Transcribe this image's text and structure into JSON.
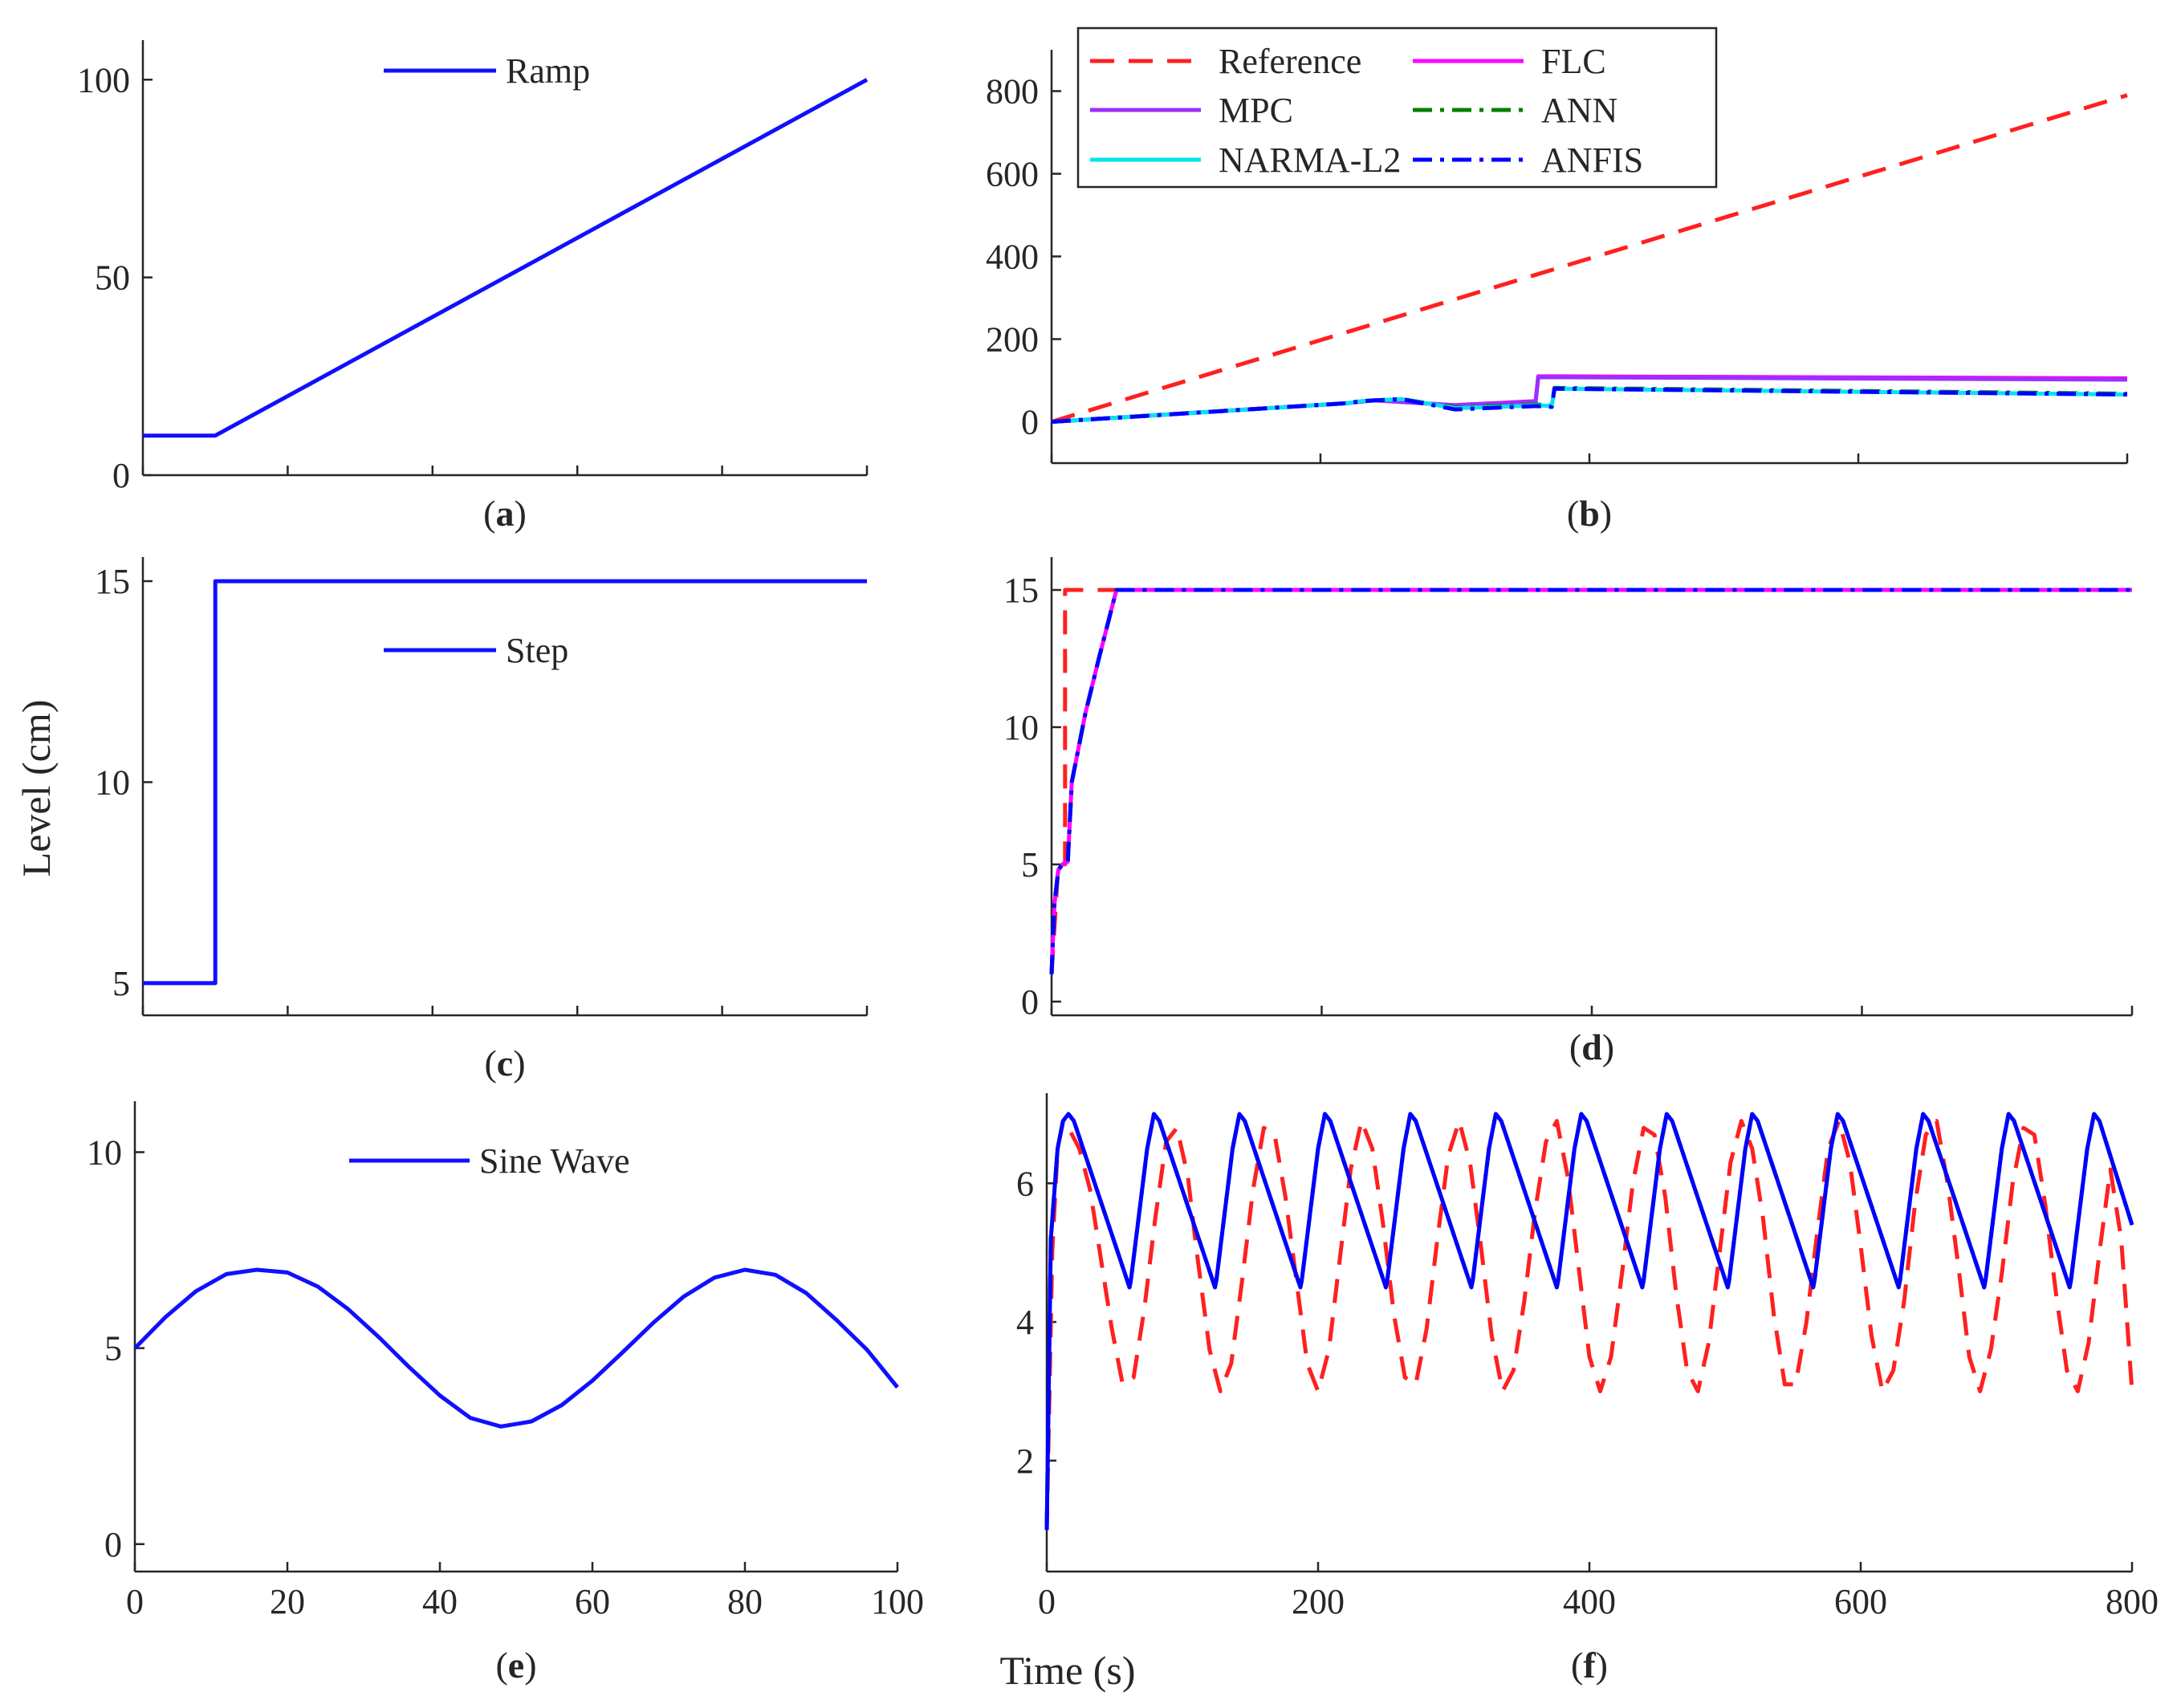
{
  "figure": {
    "ylabel": "Level (cm)",
    "xlabel": "Time (s)"
  },
  "colors": {
    "reference": "#ff2020",
    "flc": "#ff00ff",
    "mpc": "#9b30ff",
    "ann": "#008000",
    "narma": "#00e5ee",
    "anfis": "#0000ff",
    "input": "#1010ff",
    "axis": "#262626"
  },
  "chart_data": [
    {
      "id": "a",
      "panel_label": "(a)",
      "type": "line",
      "xlim": [
        0,
        100
      ],
      "ylim": [
        0,
        110
      ],
      "xticks": [
        0,
        20,
        40,
        60,
        80,
        100
      ],
      "xtick_labels": [],
      "yticks": [
        0,
        50,
        100
      ],
      "ytick_labels": [
        "0",
        "50",
        "100"
      ],
      "legend": [
        "Ramp"
      ],
      "series": [
        {
          "name": "Ramp",
          "color_key": "input",
          "style": "solid",
          "x": [
            0,
            10,
            100
          ],
          "y": [
            10,
            10,
            100
          ]
        }
      ]
    },
    {
      "id": "b",
      "panel_label": "(b)",
      "type": "line",
      "xlim": [
        0,
        800
      ],
      "ylim": [
        -100,
        900
      ],
      "xticks": [
        0,
        200,
        400,
        600,
        800
      ],
      "xtick_labels": [],
      "yticks": [
        0,
        200,
        400,
        600,
        800
      ],
      "ytick_labels": [
        "0",
        "200",
        "400",
        "600",
        "800"
      ],
      "legend": [
        "Reference",
        "FLC",
        "MPC",
        "ANN",
        "NARMA-L2",
        "ANFIS"
      ],
      "series": [
        {
          "name": "Reference",
          "color_key": "reference",
          "style": "dash",
          "x": [
            0,
            800
          ],
          "y": [
            0,
            790
          ]
        },
        {
          "name": "FLC",
          "color_key": "flc",
          "style": "solid",
          "x": [
            0,
            220,
            240,
            300,
            310,
            360,
            362,
            380,
            382,
            800
          ],
          "y": [
            0,
            45,
            52,
            40,
            42,
            50,
            110,
            110,
            110,
            105
          ]
        },
        {
          "name": "MPC",
          "color_key": "mpc",
          "style": "solid",
          "x": [
            0,
            220,
            240,
            300,
            310,
            360,
            362,
            800
          ],
          "y": [
            0,
            45,
            52,
            40,
            42,
            48,
            108,
            102
          ]
        },
        {
          "name": "ANN",
          "color_key": "ann",
          "style": "dashdot",
          "x": [
            0,
            220,
            230,
            260,
            300,
            330,
            360,
            372,
            374,
            800
          ],
          "y": [
            0,
            45,
            50,
            55,
            35,
            38,
            42,
            40,
            82,
            68
          ]
        },
        {
          "name": "NARMA-L2",
          "color_key": "narma",
          "style": "solid",
          "x": [
            0,
            220,
            230,
            260,
            300,
            330,
            360,
            372,
            374,
            800
          ],
          "y": [
            0,
            45,
            50,
            55,
            33,
            36,
            40,
            38,
            80,
            66
          ]
        },
        {
          "name": "ANFIS",
          "color_key": "anfis",
          "style": "dashdot",
          "x": [
            0,
            220,
            230,
            260,
            300,
            330,
            360,
            372,
            374,
            800
          ],
          "y": [
            0,
            45,
            50,
            55,
            30,
            34,
            38,
            36,
            80,
            66
          ]
        }
      ]
    },
    {
      "id": "c",
      "panel_label": "(c)",
      "type": "line",
      "xlim": [
        0,
        100
      ],
      "ylim": [
        4.2,
        15.6
      ],
      "xticks": [
        0,
        20,
        40,
        60,
        80,
        100
      ],
      "xtick_labels": [],
      "yticks": [
        5,
        10,
        15
      ],
      "ytick_labels": [
        "5",
        "10",
        "15"
      ],
      "legend": [
        "Step"
      ],
      "series": [
        {
          "name": "Step",
          "color_key": "input",
          "style": "solid",
          "x": [
            0,
            10,
            10,
            100
          ],
          "y": [
            5,
            5,
            15,
            15
          ]
        }
      ]
    },
    {
      "id": "d",
      "panel_label": "(d)",
      "type": "line",
      "xlim": [
        0,
        800
      ],
      "ylim": [
        -0.5,
        16.2
      ],
      "xticks": [
        0,
        200,
        400,
        600,
        800
      ],
      "xtick_labels": [],
      "yticks": [
        0,
        5,
        10,
        15
      ],
      "ytick_labels": [
        "0",
        "5",
        "10",
        "15"
      ],
      "legend": [],
      "series": [
        {
          "name": "Reference",
          "color_key": "reference",
          "style": "dash",
          "x": [
            0,
            5,
            5,
            10,
            10,
            800
          ],
          "y": [
            1,
            5,
            5,
            5,
            15,
            15
          ]
        },
        {
          "name": "FLC",
          "color_key": "flc",
          "style": "solid",
          "x": [
            0,
            2,
            5,
            8,
            12,
            15,
            25,
            35,
            48,
            800
          ],
          "y": [
            1,
            3.5,
            4.8,
            5,
            5.1,
            8,
            10.5,
            12.5,
            15,
            15
          ]
        },
        {
          "name": "ANN",
          "color_key": "ann",
          "style": "dashdot",
          "x": [
            0,
            2,
            5,
            8,
            12,
            15,
            25,
            35,
            48,
            800
          ],
          "y": [
            1,
            3.5,
            4.8,
            5,
            5.1,
            8,
            10.5,
            12.5,
            15,
            15
          ]
        },
        {
          "name": "ANFIS",
          "color_key": "anfis",
          "style": "dashdot",
          "x": [
            0,
            2,
            5,
            8,
            12,
            15,
            25,
            35,
            48,
            800
          ],
          "y": [
            1,
            3.5,
            4.8,
            5,
            5.1,
            8,
            10.5,
            12.5,
            15,
            15
          ]
        }
      ]
    },
    {
      "id": "e",
      "panel_label": "(e)",
      "type": "line",
      "xlim": [
        0,
        100
      ],
      "ylim": [
        -0.7,
        11.3
      ],
      "xticks": [
        0,
        20,
        40,
        60,
        80,
        100
      ],
      "xtick_labels": [
        "0",
        "20",
        "40",
        "60",
        "80",
        "100"
      ],
      "yticks": [
        0,
        5,
        10
      ],
      "ytick_labels": [
        "0",
        "5",
        "10"
      ],
      "legend": [
        "Sine Wave"
      ],
      "series": [
        {
          "name": "Sine Wave",
          "color_key": "input",
          "style": "solid",
          "x": [
            0,
            4,
            8,
            12,
            16,
            20,
            24,
            28,
            32,
            36,
            40,
            44,
            48,
            52,
            56,
            60,
            64,
            68,
            72,
            76,
            80,
            84,
            88,
            92,
            96,
            100
          ],
          "y": [
            5,
            5.79,
            6.45,
            6.89,
            7,
            6.93,
            6.57,
            5.99,
            5.28,
            4.51,
            3.79,
            3.22,
            3,
            3.13,
            3.55,
            4.17,
            4.9,
            5.65,
            6.32,
            6.8,
            7,
            6.87,
            6.41,
            5.72,
            4.96,
            4
          ]
        }
      ]
    },
    {
      "id": "f",
      "panel_label": "(f)",
      "type": "line",
      "xlim": [
        0,
        800
      ],
      "ylim": [
        0.4,
        7.3
      ],
      "xticks": [
        0,
        200,
        400,
        600,
        800
      ],
      "xtick_labels": [
        "0",
        "200",
        "400",
        "600",
        "800"
      ],
      "yticks": [
        2,
        4,
        6
      ],
      "ytick_labels": [
        "2",
        "4",
        "6"
      ],
      "legend": [],
      "series": [
        {
          "name": "Reference",
          "color_key": "reference",
          "style": "dash",
          "x": [
            0,
            4,
            8,
            12,
            16,
            24,
            32,
            40,
            48,
            56,
            64,
            72,
            80,
            88,
            96,
            104,
            110,
            120,
            128,
            136,
            144,
            152,
            160,
            168,
            176,
            184,
            192,
            200,
            208,
            216,
            224,
            232,
            240,
            248,
            256,
            264,
            272,
            280,
            288,
            296,
            304,
            312,
            320,
            328,
            336,
            344,
            352,
            360,
            368,
            376,
            384,
            392,
            400,
            408,
            416,
            424,
            432,
            440,
            448,
            456,
            464,
            472,
            480,
            488,
            496,
            504,
            512,
            520,
            528,
            536,
            544,
            552,
            560,
            568,
            576,
            584,
            592,
            600,
            608,
            616,
            624,
            632,
            640,
            648,
            656,
            664,
            672,
            680,
            688,
            696,
            704,
            712,
            720,
            728,
            736,
            744,
            752,
            760,
            768,
            776,
            784,
            792,
            800
          ],
          "y": [
            1,
            5,
            6.5,
            6.9,
            6.8,
            6.5,
            5.9,
            4.9,
            3.9,
            3.1,
            3.2,
            4.2,
            5.5,
            6.6,
            6.8,
            6.1,
            5.1,
            3.6,
            3,
            3.4,
            4.6,
            5.9,
            6.8,
            6.7,
            5.8,
            4.6,
            3.4,
            3,
            3.6,
            4.9,
            6.2,
            6.9,
            6.5,
            5.4,
            4.1,
            3.2,
            3.1,
            3.9,
            5.2,
            6.4,
            6.9,
            6.3,
            5.1,
            3.8,
            3,
            3.3,
            4.3,
            5.6,
            6.6,
            6.9,
            6.1,
            4.8,
            3.5,
            3,
            3.5,
            4.7,
            6,
            6.8,
            6.7,
            5.8,
            4.4,
            3.3,
            3,
            3.7,
            5,
            6.3,
            6.9,
            6.5,
            5.5,
            4.1,
            3.1,
            3.1,
            4,
            5.3,
            6.5,
            6.9,
            6.3,
            5.1,
            3.8,
            3,
            3.3,
            4.3,
            5.7,
            6.7,
            6.9,
            6,
            4.8,
            3.5,
            3,
            3.6,
            4.7,
            6,
            6.8,
            6.7,
            5.7,
            4.4,
            3.3,
            3,
            3.7,
            5,
            6.2,
            5.2,
            3
          ]
        },
        {
          "name": "ANN",
          "color_key": "ann",
          "style": "dashdot",
          "x": [
            0,
            3,
            8,
            12,
            16,
            20,
            61,
            62,
            74,
            79,
            83,
            124,
            125,
            137,
            142,
            146,
            187,
            188,
            200,
            205,
            209,
            250,
            251,
            263,
            268,
            272,
            313,
            314,
            326,
            331,
            335,
            376,
            377,
            389,
            394,
            398,
            439,
            440,
            452,
            457,
            461,
            502,
            503,
            515,
            520,
            524,
            565,
            566,
            578,
            583,
            587,
            628,
            629,
            641,
            646,
            650,
            691,
            692,
            704,
            709,
            713,
            754,
            755,
            767,
            772,
            776,
            800
          ],
          "y": [
            1,
            5.2,
            6.5,
            6.9,
            7,
            6.9,
            4.5,
            4.6,
            6.5,
            7,
            6.9,
            4.5,
            4.6,
            6.5,
            7,
            6.9,
            4.5,
            4.6,
            6.5,
            7,
            6.9,
            4.5,
            4.6,
            6.5,
            7,
            6.9,
            4.5,
            4.6,
            6.5,
            7,
            6.9,
            4.5,
            4.6,
            6.5,
            7,
            6.9,
            4.5,
            4.6,
            6.5,
            7,
            6.9,
            4.5,
            4.6,
            6.5,
            7,
            6.9,
            4.5,
            4.6,
            6.5,
            7,
            6.9,
            4.5,
            4.6,
            6.5,
            7,
            6.9,
            4.5,
            4.6,
            6.5,
            7,
            6.9,
            4.5,
            4.6,
            6.5,
            7,
            6.9,
            5.4
          ]
        },
        {
          "name": "ANFIS",
          "color_key": "anfis",
          "style": "solid",
          "x": [
            0,
            3,
            8,
            12,
            16,
            20,
            61,
            62,
            74,
            79,
            83,
            124,
            125,
            137,
            142,
            146,
            187,
            188,
            200,
            205,
            209,
            250,
            251,
            263,
            268,
            272,
            313,
            314,
            326,
            331,
            335,
            376,
            377,
            389,
            394,
            398,
            439,
            440,
            452,
            457,
            461,
            502,
            503,
            515,
            520,
            524,
            565,
            566,
            578,
            583,
            587,
            628,
            629,
            641,
            646,
            650,
            691,
            692,
            704,
            709,
            713,
            754,
            755,
            767,
            772,
            776,
            800
          ],
          "y": [
            1,
            5.2,
            6.5,
            6.9,
            7,
            6.9,
            4.5,
            4.6,
            6.5,
            7,
            6.9,
            4.5,
            4.6,
            6.5,
            7,
            6.9,
            4.5,
            4.6,
            6.5,
            7,
            6.9,
            4.5,
            4.6,
            6.5,
            7,
            6.9,
            4.5,
            4.6,
            6.5,
            7,
            6.9,
            4.5,
            4.6,
            6.5,
            7,
            6.9,
            4.5,
            4.6,
            6.5,
            7,
            6.9,
            4.5,
            4.6,
            6.5,
            7,
            6.9,
            4.5,
            4.6,
            6.5,
            7,
            6.9,
            4.5,
            4.6,
            6.5,
            7,
            6.9,
            4.5,
            4.6,
            6.5,
            7,
            6.9,
            4.5,
            4.6,
            6.5,
            7,
            6.9,
            5.4
          ]
        }
      ]
    }
  ]
}
